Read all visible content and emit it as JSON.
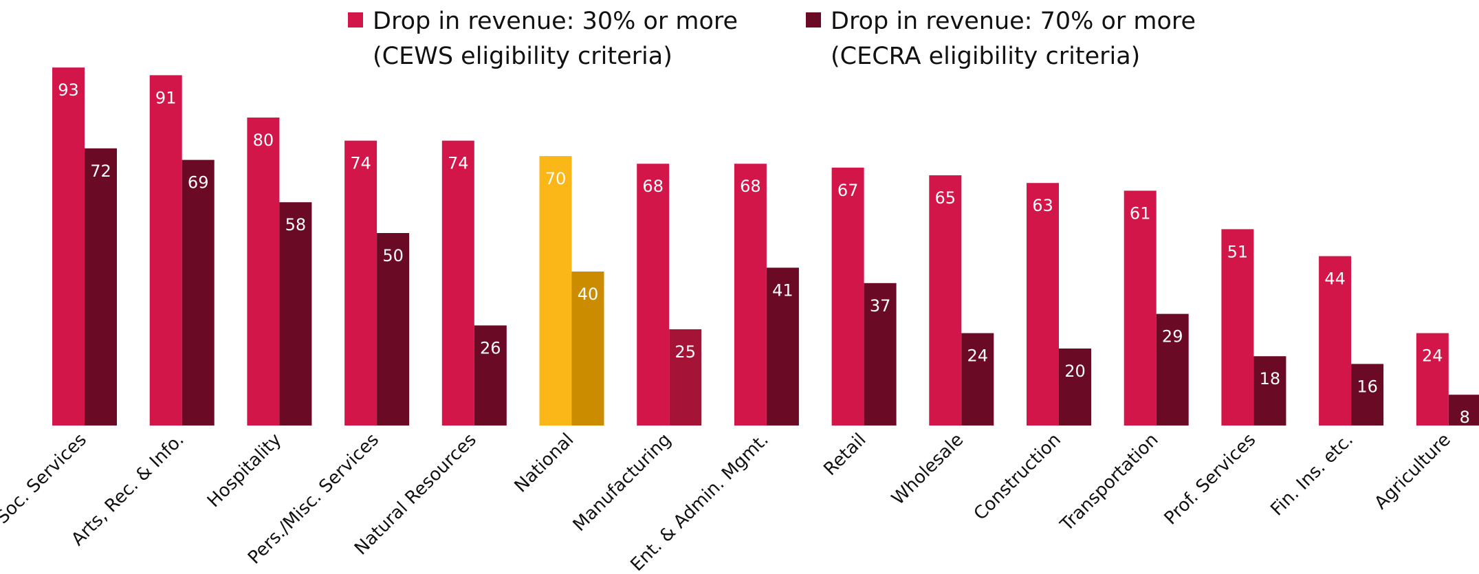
{
  "colors": {
    "series1": "#D2164A",
    "series2": "#6B0A24",
    "highlight1": "#FBB617",
    "highlight2": "#CC8C00",
    "manufacturing2": "#A51437"
  },
  "legend": [
    {
      "line1": "Drop in revenue: 30% or more",
      "line2": "(CEWS eligibility criteria)"
    },
    {
      "line1": "Drop in revenue: 70% or more",
      "line2": "(CECRA eligibility criteria)"
    }
  ],
  "chart_data": {
    "type": "bar",
    "categories": [
      "Soc. Services",
      "Arts, Rec. & Info.",
      "Hospitality",
      "Pers./Misc. Services",
      "Natural Resources",
      "National",
      "Manufacturing",
      "Ent. & Admin. Mgmt.",
      "Retail",
      "Wholesale",
      "Construction",
      "Transportation",
      "Prof. Services",
      "Fin. Ins. etc.",
      "Agriculture"
    ],
    "series": [
      {
        "name": "Drop in revenue: 30% or more (CEWS eligibility criteria)",
        "values": [
          93,
          91,
          80,
          74,
          74,
          70,
          68,
          68,
          67,
          65,
          63,
          61,
          51,
          44,
          24
        ]
      },
      {
        "name": "Drop in revenue: 70% or more (CECRA eligibility criteria)",
        "values": [
          72,
          69,
          58,
          50,
          26,
          40,
          25,
          41,
          37,
          24,
          20,
          29,
          18,
          16,
          8
        ]
      }
    ],
    "highlight_category": "National",
    "data_labels": true,
    "grid": false,
    "legend_position": "top",
    "ylim": [
      0,
      100
    ]
  }
}
